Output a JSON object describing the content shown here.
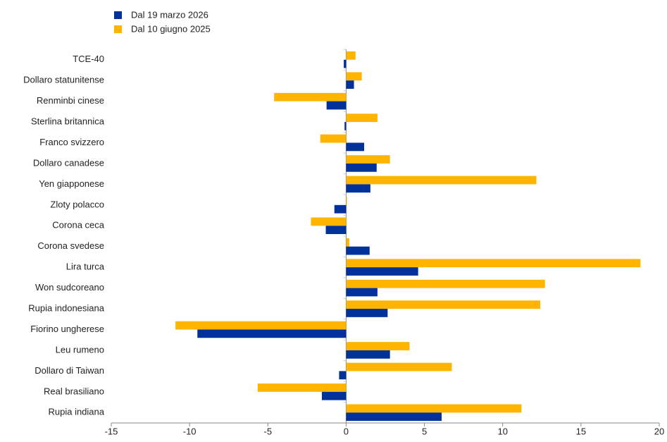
{
  "chart_data": {
    "type": "barh",
    "categories": [
      "TCE-40",
      "Dollaro statunitense",
      "Renminbi cinese",
      "Sterlina britannica",
      "Franco svizzero",
      "Dollaro canadese",
      "Yen giapponese",
      "Zloty polacco",
      "Corona ceca",
      "Corona svedese",
      "Lira turca",
      "Won sudcoreano",
      "Rupia indonesiana",
      "Fiorino ungherese",
      "Leu rumeno",
      "Dollaro di Taiwan",
      "Real brasiliano",
      "Rupia indiana"
    ],
    "series": [
      {
        "name": "Dal 19 marzo 2026",
        "color": "#003299",
        "values": [
          -0.15,
          0.5,
          -1.25,
          -0.1,
          1.15,
          1.95,
          1.55,
          -0.75,
          -1.3,
          1.5,
          4.6,
          2.0,
          2.65,
          -9.5,
          2.8,
          -0.45,
          -1.55,
          6.1
        ]
      },
      {
        "name": "Dal 10 giugno 2025",
        "color": "#ffb400",
        "values": [
          0.6,
          1.0,
          -4.6,
          2.0,
          -1.65,
          2.8,
          12.15,
          0.05,
          -2.25,
          0.2,
          18.8,
          12.7,
          12.4,
          -10.9,
          4.05,
          6.75,
          -5.65,
          11.2
        ]
      }
    ],
    "xlim": [
      -15,
      20
    ],
    "xticks": [
      -15,
      -10,
      -5,
      0,
      5,
      10,
      15,
      20
    ],
    "legend": "top-left"
  }
}
